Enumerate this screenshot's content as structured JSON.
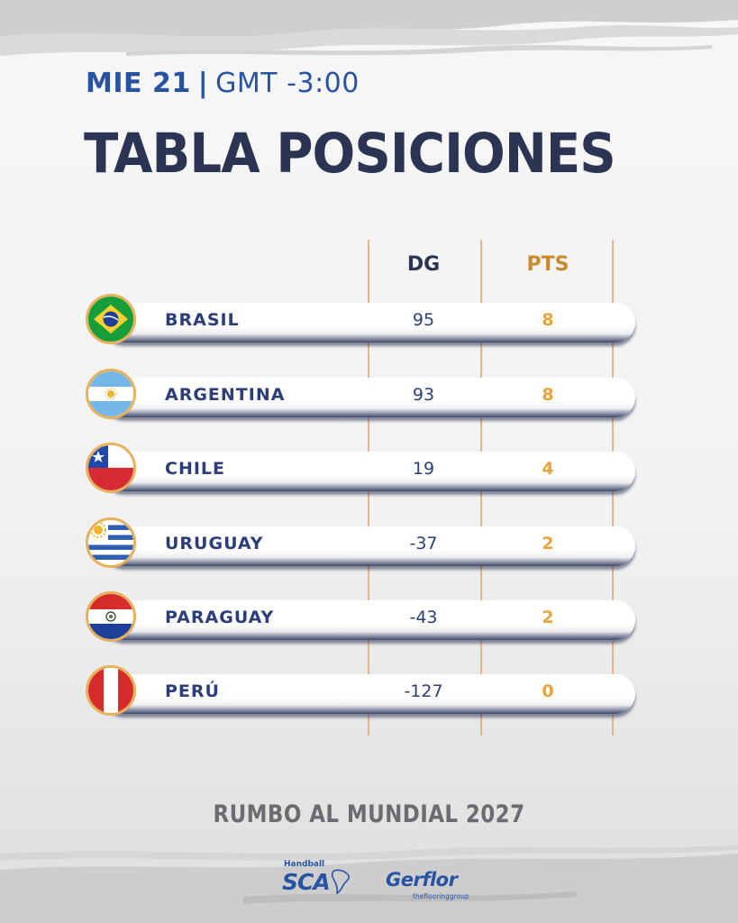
{
  "header": {
    "day": "MIE 21",
    "separator": "|",
    "timezone": "GMT -3:00"
  },
  "title": "TABLA POSICIONES",
  "table": {
    "columns": {
      "dg": "DG",
      "pts": "PTS"
    },
    "rows": [
      {
        "team": "BRASIL",
        "dg": "95",
        "pts": "8",
        "flag": "brazil-flag-icon"
      },
      {
        "team": "ARGENTINA",
        "dg": "93",
        "pts": "8",
        "flag": "argentina-flag-icon"
      },
      {
        "team": "CHILE",
        "dg": "19",
        "pts": "4",
        "flag": "chile-flag-icon"
      },
      {
        "team": "URUGUAY",
        "dg": "-37",
        "pts": "2",
        "flag": "uruguay-flag-icon"
      },
      {
        "team": "PARAGUAY",
        "dg": "-43",
        "pts": "2",
        "flag": "paraguay-flag-icon"
      },
      {
        "team": "PERÚ",
        "dg": "-127",
        "pts": "0",
        "flag": "peru-flag-icon"
      }
    ]
  },
  "tagline": "RUMBO AL MUNDIAL 2027",
  "sponsors": {
    "sca_small": "Handball",
    "sca_big": "SCA",
    "gerflor_big": "Gerflor",
    "gerflor_small": "theflooringgroup"
  },
  "colors": {
    "navy": "#2b3553",
    "blue": "#2753a2",
    "gold": "#e8a43a",
    "gold_header": "#c98a2c",
    "divider": "#e9b486"
  }
}
